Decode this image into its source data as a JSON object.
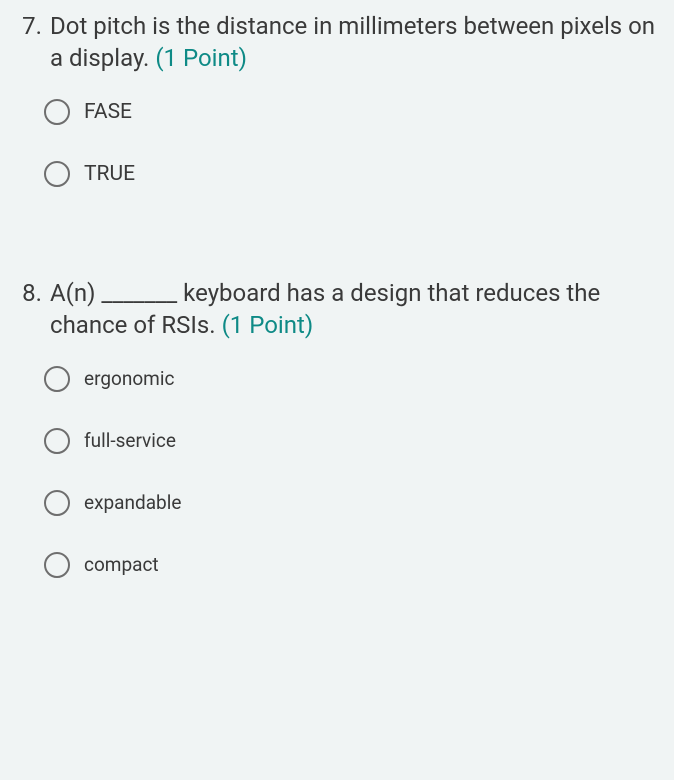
{
  "colors": {
    "background": "#f0f4f4",
    "text": "#3a3a3a",
    "accent": "#0e8a86",
    "radio_border": "#6e6e6e"
  },
  "typography": {
    "question_fontsize_pt": 18,
    "option_fontsize_pt": 15,
    "font_family": "Segoe UI"
  },
  "questions": [
    {
      "number": "7.",
      "text": "Dot pitch is the distance in millimeters between pixels on a display.",
      "points_label": "(1 Point)",
      "options": [
        {
          "label": "FASE",
          "selected": false
        },
        {
          "label": "TRUE",
          "selected": false
        }
      ]
    },
    {
      "number": "8.",
      "text": "A(n) _______ keyboard has a design that reduces the chance of RSIs.",
      "points_label": "(1 Point)",
      "options": [
        {
          "label": "ergonomic",
          "selected": false
        },
        {
          "label": "full-service",
          "selected": false
        },
        {
          "label": "expandable",
          "selected": false
        },
        {
          "label": "compact",
          "selected": false
        }
      ]
    }
  ]
}
